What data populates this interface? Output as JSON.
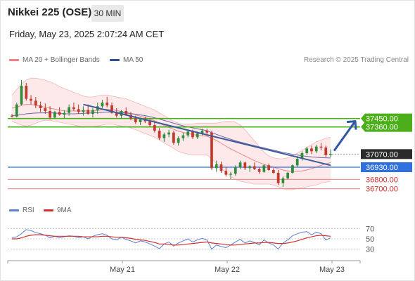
{
  "header": {
    "title": "Nikkei 225 (OSE)",
    "timeframe": "30 MIN",
    "timestamp": "Friday, May 23, 2025 2:07:24 AM CET"
  },
  "legend": {
    "main": [
      {
        "label": "MA 20 + Bollinger Bands",
        "color": "#f08080"
      },
      {
        "label": "MA 50",
        "color": "#2e4f8f"
      }
    ],
    "rsi": [
      {
        "label": "RSI",
        "color": "#5b7fd6"
      },
      {
        "label": "9MA",
        "color": "#d32f2f"
      }
    ]
  },
  "copyright": "Research © 2025 Trading Central",
  "colors": {
    "resistance": "#4caf1a",
    "support": "#2f6fde",
    "support_light": "#e57373",
    "last_price": "#2b2b2b",
    "up_candle": "#2e8b3a",
    "down_candle": "#c0392b",
    "forecast_arrow": "#2f56a8"
  },
  "price_levels": [
    {
      "value": "37450.00",
      "role": "resistance"
    },
    {
      "value": "37360.00",
      "role": "resistance"
    },
    {
      "value": "37070.00",
      "role": "last_price"
    },
    {
      "value": "36930.00",
      "role": "pivot"
    },
    {
      "value": "36800.00",
      "role": "support"
    },
    {
      "value": "36700.00",
      "role": "support"
    }
  ],
  "rsi_axis": [
    "70",
    "50",
    "30"
  ],
  "time_axis": [
    "May 21",
    "May 22",
    "May 23"
  ],
  "chart_data": {
    "type": "candlestick",
    "price_scale": {
      "top": 37980,
      "bottom": 36630
    },
    "candles": [
      [
        37480,
        37500,
        37460,
        37470
      ],
      [
        37470,
        37620,
        37460,
        37600
      ],
      [
        37600,
        37860,
        37590,
        37800
      ],
      [
        37800,
        37830,
        37640,
        37660
      ],
      [
        37660,
        37700,
        37600,
        37640
      ],
      [
        37640,
        37680,
        37560,
        37590
      ],
      [
        37590,
        37630,
        37520,
        37560
      ],
      [
        37560,
        37610,
        37500,
        37530
      ],
      [
        37530,
        37580,
        37440,
        37460
      ],
      [
        37460,
        37530,
        37450,
        37520
      ],
      [
        37520,
        37570,
        37480,
        37490
      ],
      [
        37490,
        37540,
        37450,
        37510
      ],
      [
        37510,
        37600,
        37480,
        37570
      ],
      [
        37570,
        37620,
        37530,
        37550
      ],
      [
        37550,
        37600,
        37500,
        37520
      ],
      [
        37520,
        37580,
        37480,
        37540
      ],
      [
        37540,
        37600,
        37490,
        37500
      ],
      [
        37500,
        37560,
        37460,
        37540
      ],
      [
        37540,
        37620,
        37500,
        37580
      ],
      [
        37580,
        37650,
        37560,
        37620
      ],
      [
        37620,
        37680,
        37570,
        37590
      ],
      [
        37590,
        37620,
        37500,
        37510
      ],
      [
        37510,
        37560,
        37460,
        37480
      ],
      [
        37480,
        37540,
        37450,
        37530
      ],
      [
        37530,
        37570,
        37480,
        37490
      ],
      [
        37490,
        37520,
        37430,
        37450
      ],
      [
        37450,
        37480,
        37390,
        37410
      ],
      [
        37410,
        37460,
        37380,
        37440
      ],
      [
        37440,
        37470,
        37400,
        37420
      ],
      [
        37420,
        37450,
        37360,
        37380
      ],
      [
        37380,
        37410,
        37300,
        37320
      ],
      [
        37320,
        37350,
        37220,
        37240
      ],
      [
        37240,
        37300,
        37200,
        37280
      ],
      [
        37280,
        37330,
        37250,
        37300
      ],
      [
        37300,
        37320,
        37170,
        37190
      ],
      [
        37190,
        37260,
        37160,
        37240
      ],
      [
        37240,
        37300,
        37210,
        37270
      ],
      [
        37270,
        37320,
        37250,
        37310
      ],
      [
        37310,
        37330,
        37230,
        37250
      ],
      [
        37250,
        37310,
        37230,
        37290
      ],
      [
        37290,
        37340,
        37270,
        37320
      ],
      [
        37320,
        37340,
        37280,
        37300
      ],
      [
        37300,
        37320,
        36900,
        36920
      ],
      [
        36920,
        37000,
        36880,
        36960
      ],
      [
        36960,
        36990,
        36870,
        36890
      ],
      [
        36890,
        36930,
        36830,
        36850
      ],
      [
        36850,
        36880,
        36800,
        36860
      ],
      [
        36860,
        36950,
        36840,
        36930
      ],
      [
        36930,
        37000,
        36910,
        36980
      ],
      [
        36980,
        36990,
        36900,
        36920
      ],
      [
        36920,
        36950,
        36880,
        36940
      ],
      [
        36940,
        36980,
        36900,
        36910
      ],
      [
        36910,
        36930,
        36860,
        36880
      ],
      [
        36880,
        36960,
        36870,
        36950
      ],
      [
        36950,
        36970,
        36890,
        36900
      ],
      [
        36900,
        36920,
        36860,
        36870
      ],
      [
        36870,
        36900,
        36740,
        36760
      ],
      [
        36760,
        36830,
        36720,
        36810
      ],
      [
        36810,
        36880,
        36800,
        36870
      ],
      [
        36870,
        36960,
        36860,
        36950
      ],
      [
        36950,
        37050,
        36930,
        37020
      ],
      [
        37020,
        37100,
        37000,
        37080
      ],
      [
        37080,
        37150,
        37060,
        37130
      ],
      [
        37130,
        37160,
        37070,
        37100
      ],
      [
        37100,
        37170,
        37080,
        37150
      ],
      [
        37150,
        37190,
        37110,
        37140
      ],
      [
        37140,
        37160,
        37040,
        37060
      ],
      [
        37060,
        37120,
        37040,
        37070
      ]
    ],
    "ma20": [
      37560,
      37570,
      37590,
      37600,
      37600,
      37590,
      37580,
      37570,
      37560,
      37550,
      37540,
      37530,
      37530,
      37530,
      37530,
      37530,
      37530,
      37530,
      37535,
      37545,
      37550,
      37545,
      37535,
      37525,
      37515,
      37505,
      37490,
      37475,
      37460,
      37445,
      37425,
      37400,
      37375,
      37355,
      37335,
      37315,
      37300,
      37290,
      37280,
      37270,
      37265,
      37260,
      37240,
      37215,
      37185,
      37155,
      37125,
      37100,
      37075,
      37050,
      37025,
      37000,
      36980,
      36960,
      36945,
      36930,
      36915,
      36900,
      36890,
      36885,
      36885,
      36890,
      36900,
      36915,
      36930,
      36950,
      36965,
      36980
    ],
    "bb_upper": [
      37700,
      37760,
      37820,
      37860,
      37880,
      37880,
      37870,
      37860,
      37840,
      37820,
      37790,
      37770,
      37750,
      37730,
      37710,
      37690,
      37680,
      37680,
      37690,
      37700,
      37700,
      37690,
      37680,
      37670,
      37660,
      37640,
      37620,
      37600,
      37580,
      37560,
      37540,
      37510,
      37480,
      37450,
      37420,
      37400,
      37390,
      37390,
      37390,
      37400,
      37400,
      37400,
      37400,
      37400,
      37410,
      37420,
      37420,
      37410,
      37380,
      37330,
      37270,
      37210,
      37150,
      37090,
      37050,
      37030,
      37020,
      37020,
      37030,
      37050,
      37080,
      37110,
      37140,
      37170,
      37200,
      37220,
      37240,
      37250
    ],
    "bb_lower": [
      37420,
      37400,
      37380,
      37370,
      37380,
      37400,
      37420,
      37430,
      37430,
      37420,
      37410,
      37400,
      37390,
      37380,
      37370,
      37360,
      37360,
      37360,
      37370,
      37380,
      37390,
      37390,
      37380,
      37370,
      37360,
      37350,
      37330,
      37310,
      37290,
      37270,
      37250,
      37220,
      37190,
      37160,
      37130,
      37100,
      37080,
      37070,
      37060,
      37060,
      37060,
      37060,
      37020,
      36970,
      36920,
      36870,
      36830,
      36800,
      36780,
      36770,
      36760,
      36750,
      36750,
      36750,
      36750,
      36740,
      36720,
      36700,
      36690,
      36690,
      36700,
      36710,
      36720,
      36730,
      36740,
      36760,
      36770,
      36780
    ],
    "ma50": [
      37480,
      37485,
      37490,
      37500,
      37505,
      37508,
      37510,
      37510,
      37510,
      37508,
      37505,
      37500,
      37500,
      37500,
      37502,
      37505,
      37508,
      37510,
      37512,
      37515,
      37518,
      37518,
      37515,
      37512,
      37508,
      37502,
      37495,
      37488,
      37480,
      37470,
      37458,
      37445,
      37430,
      37415,
      37400,
      37385,
      37372,
      37360,
      37350,
      37340,
      37330,
      37320,
      37300,
      37280,
      37262,
      37245,
      37228,
      37212,
      37198,
      37185,
      37172,
      37160,
      37148,
      37136,
      37124,
      37112,
      37100,
      37088,
      37078,
      37068,
      37060,
      37052,
      37045,
      37040,
      37036,
      37032,
      37030,
      37028
    ],
    "trendline": {
      "from": [
        15,
        37600
      ],
      "to": [
        67,
        36950
      ]
    },
    "forecast": {
      "from": [
        67,
        37030
      ],
      "to": [
        72,
        37360
      ]
    },
    "rsi": [
      52,
      54,
      60,
      68,
      66,
      62,
      60,
      57,
      52,
      55,
      52,
      54,
      56,
      55,
      52,
      54,
      50,
      55,
      58,
      60,
      57,
      50,
      48,
      53,
      49,
      46,
      42,
      46,
      44,
      40,
      36,
      31,
      40,
      44,
      36,
      42,
      46,
      50,
      44,
      48,
      51,
      48,
      30,
      38,
      35,
      33,
      38,
      44,
      49,
      42,
      46,
      43,
      38,
      48,
      42,
      38,
      30,
      42,
      48,
      56,
      60,
      63,
      64,
      58,
      63,
      60,
      48,
      52
    ],
    "rsi_ma9": [
      50,
      50,
      52,
      55,
      57,
      58,
      58,
      57,
      56,
      55,
      55,
      55,
      55,
      55,
      55,
      54,
      54,
      54,
      54,
      55,
      55,
      54,
      53,
      53,
      52,
      51,
      49,
      48,
      47,
      45,
      43,
      40,
      40,
      39,
      38,
      38,
      39,
      40,
      41,
      42,
      43,
      44,
      42,
      41,
      40,
      39,
      38,
      38,
      39,
      40,
      41,
      42,
      42,
      43,
      43,
      42,
      41,
      41,
      42,
      44,
      46,
      49,
      52,
      54,
      56,
      57,
      56,
      55
    ],
    "rsi_scale": {
      "top": 80,
      "bottom": 20
    }
  }
}
